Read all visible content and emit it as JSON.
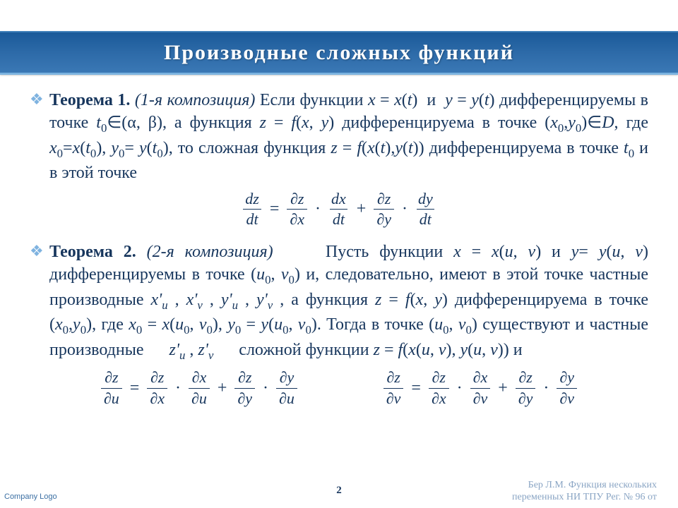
{
  "title": "Производные сложных функций",
  "theorem1": {
    "label": "Теорема 1.",
    "composition": "(1-я композиция)",
    "body_parts": [
      " Если функции ",
      "x",
      " = ",
      "x",
      "(",
      "t",
      ")  и  ",
      "y",
      " = ",
      "y",
      "(",
      "t",
      ") дифференцируемы в точке ",
      "t",
      "0",
      " (α, β), а функция ",
      "z",
      " = ",
      "f",
      "(",
      "x",
      ", ",
      "y",
      ") дифференцируема в точке (",
      "x",
      "0",
      ",",
      "y",
      "0",
      ")∈",
      "D",
      ", где ",
      "x",
      "0",
      "=",
      "x",
      "(",
      "t",
      "0",
      "), ",
      "y",
      "0",
      "= ",
      "y",
      "(",
      "t",
      "0",
      "), то сложная функция ",
      "z",
      " = ",
      "f",
      "(",
      "x",
      "(",
      "t",
      "),",
      "y",
      "(",
      "t",
      ")) дифференцируема в точке ",
      "t",
      "0",
      " и в этой точке"
    ]
  },
  "equation1": {
    "lhs_num": "dz",
    "lhs_den": "dt",
    "term1_a_num": "∂z",
    "term1_a_den": "∂x",
    "term1_b_num": "dx",
    "term1_b_den": "dt",
    "term2_a_num": "∂z",
    "term2_a_den": "∂y",
    "term2_b_num": "dy",
    "term2_b_den": "dt"
  },
  "theorem2": {
    "label": "Теорема 2.",
    "composition": "(2-я композиция)",
    "body": "Пусть функции x = x(u, v) и y= y(u, v) дифференцируемы в точке (u0, v0) и, следовательно, имеют в этой точке частные производные x'u , x'v , y'u , y'v , а функция z = f(x, y) дифференцируема в точке (x0,y0), где x0 = x(u0, v0), y0 = y(u0, v0). Тогда в точке (u0, v0) существуют и частные производные z'u , z'v сложной функции z = f(x(u, v), y(u, v)) и"
  },
  "equation2_left": {
    "lhs_num": "∂z",
    "lhs_den": "∂u",
    "t1a_num": "∂z",
    "t1a_den": "∂x",
    "t1b_num": "∂x",
    "t1b_den": "∂u",
    "t2a_num": "∂z",
    "t2a_den": "∂y",
    "t2b_num": "∂y",
    "t2b_den": "∂u"
  },
  "equation2_right": {
    "lhs_num": "∂z",
    "lhs_den": "∂v",
    "t1a_num": "∂z",
    "t1a_den": "∂x",
    "t1b_num": "∂x",
    "t1b_den": "∂v",
    "t2a_num": "∂z",
    "t2a_den": "∂y",
    "t2b_num": "∂y",
    "t2b_den": "∂v"
  },
  "footer": {
    "page": "2",
    "credit_line1": "Бер Л.М. Функция нескольких",
    "credit_line2": "переменных   НИ ТПУ Рег. № 96  от",
    "logo": "Company Logo"
  },
  "colors": {
    "text": "#17365d",
    "title_bg_top": "#1a5a99",
    "title_bg_bottom": "#3a78b5",
    "bullet": "#7fb3e0",
    "footer_text": "#8aa5c4"
  }
}
